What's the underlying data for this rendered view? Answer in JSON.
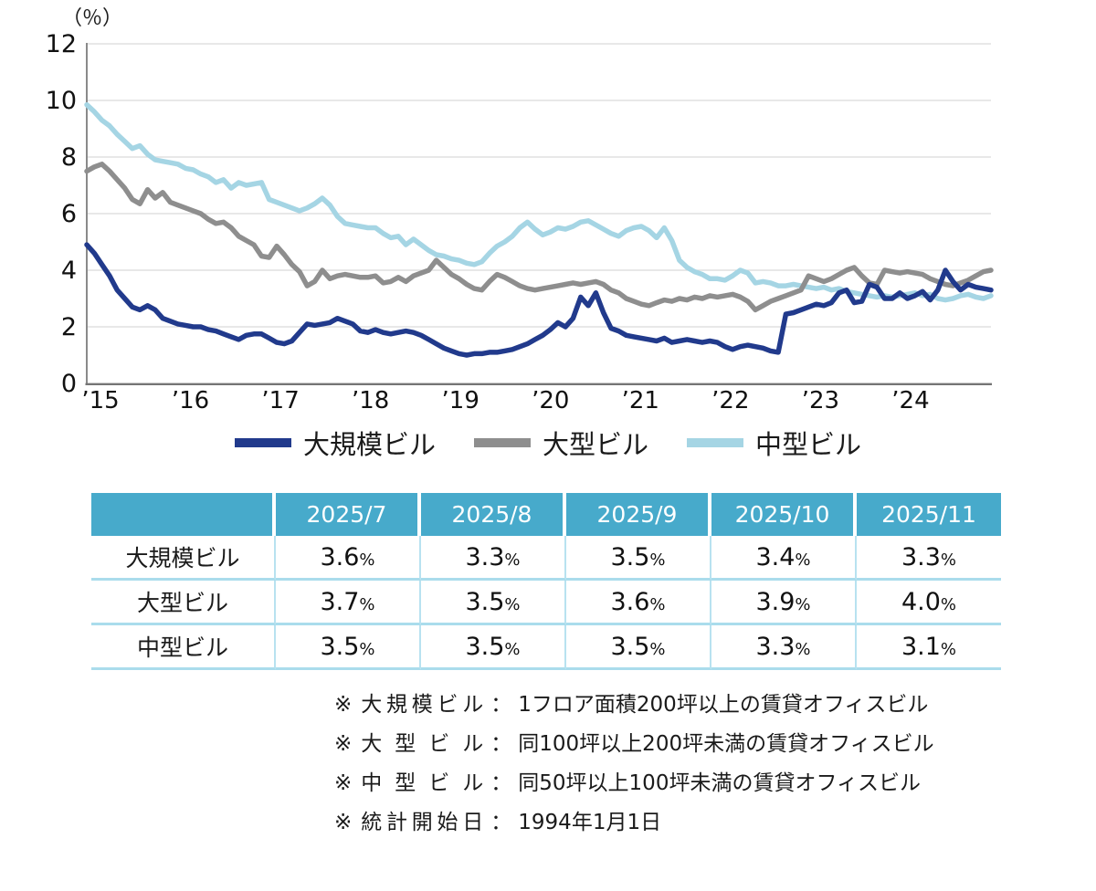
{
  "chart_data": {
    "type": "line",
    "title": "",
    "ylabel": "（％）",
    "ylim": [
      0,
      12
    ],
    "yticks": [
      0,
      2,
      4,
      6,
      8,
      10,
      12
    ],
    "grid": "horizontal",
    "legend_position": "bottom",
    "x_monthly_range": "2015/01 - 2024/12",
    "xtick_labels": [
      "’15",
      "’16",
      "’17",
      "’18",
      "’19",
      "’20",
      "’21",
      "’22",
      "’23",
      "’24"
    ],
    "grid_color": "#d9d9d9",
    "axis_color": "#7a7a7a",
    "series": [
      {
        "name": "大規模ビル",
        "color": "#213a8c",
        "width": 5.5,
        "values": [
          4.9,
          4.6,
          4.2,
          3.8,
          3.3,
          3.0,
          2.7,
          2.6,
          2.75,
          2.6,
          2.3,
          2.2,
          2.1,
          2.05,
          2.0,
          2.0,
          1.9,
          1.85,
          1.75,
          1.65,
          1.55,
          1.7,
          1.75,
          1.75,
          1.6,
          1.45,
          1.4,
          1.5,
          1.8,
          2.1,
          2.05,
          2.1,
          2.15,
          2.3,
          2.2,
          2.1,
          1.85,
          1.8,
          1.9,
          1.8,
          1.75,
          1.8,
          1.85,
          1.8,
          1.7,
          1.55,
          1.4,
          1.25,
          1.15,
          1.05,
          1.0,
          1.05,
          1.05,
          1.1,
          1.1,
          1.15,
          1.2,
          1.3,
          1.4,
          1.55,
          1.7,
          1.9,
          2.15,
          2.0,
          2.3,
          3.05,
          2.75,
          3.2,
          2.5,
          1.95,
          1.85,
          1.7,
          1.65,
          1.6,
          1.55,
          1.5,
          1.6,
          1.45,
          1.5,
          1.55,
          1.5,
          1.45,
          1.5,
          1.45,
          1.3,
          1.2,
          1.3,
          1.35,
          1.3,
          1.25,
          1.15,
          1.1,
          2.45,
          2.5,
          2.6,
          2.7,
          2.8,
          2.75,
          2.85,
          3.2,
          3.3,
          2.85,
          2.9,
          3.5,
          3.4,
          3.0,
          3.0,
          3.2,
          3.0,
          3.1,
          3.25,
          2.95,
          3.3,
          4.0,
          3.6,
          3.3,
          3.5,
          3.4,
          3.35,
          3.3
        ]
      },
      {
        "name": "大型ビル",
        "color": "#8e8e8e",
        "width": 5.5,
        "values": [
          7.5,
          7.65,
          7.75,
          7.5,
          7.2,
          6.9,
          6.5,
          6.35,
          6.85,
          6.55,
          6.75,
          6.4,
          6.3,
          6.2,
          6.1,
          6.0,
          5.8,
          5.65,
          5.7,
          5.5,
          5.2,
          5.05,
          4.9,
          4.5,
          4.45,
          4.85,
          4.55,
          4.2,
          3.95,
          3.45,
          3.6,
          4.0,
          3.7,
          3.8,
          3.85,
          3.8,
          3.75,
          3.75,
          3.8,
          3.55,
          3.6,
          3.75,
          3.6,
          3.8,
          3.9,
          4.0,
          4.35,
          4.1,
          3.85,
          3.7,
          3.5,
          3.35,
          3.3,
          3.6,
          3.85,
          3.75,
          3.6,
          3.45,
          3.35,
          3.3,
          3.35,
          3.4,
          3.45,
          3.5,
          3.55,
          3.5,
          3.55,
          3.6,
          3.5,
          3.3,
          3.2,
          3.0,
          2.9,
          2.8,
          2.75,
          2.85,
          2.95,
          2.9,
          3.0,
          2.95,
          3.05,
          3.0,
          3.1,
          3.05,
          3.1,
          3.15,
          3.05,
          2.9,
          2.6,
          2.75,
          2.9,
          3.0,
          3.1,
          3.2,
          3.3,
          3.8,
          3.7,
          3.6,
          3.7,
          3.85,
          4.0,
          4.1,
          3.8,
          3.55,
          3.5,
          4.0,
          3.95,
          3.9,
          3.95,
          3.9,
          3.85,
          3.7,
          3.6,
          3.5,
          3.45,
          3.55,
          3.65,
          3.8,
          3.95,
          4.0
        ]
      },
      {
        "name": "中型ビル",
        "color": "#a5d5e4",
        "width": 5.5,
        "values": [
          9.85,
          9.6,
          9.3,
          9.1,
          8.8,
          8.55,
          8.3,
          8.4,
          8.1,
          7.9,
          7.85,
          7.8,
          7.75,
          7.6,
          7.55,
          7.4,
          7.3,
          7.1,
          7.2,
          6.9,
          7.1,
          7.0,
          7.05,
          7.1,
          6.5,
          6.4,
          6.3,
          6.2,
          6.1,
          6.2,
          6.35,
          6.55,
          6.3,
          5.9,
          5.65,
          5.6,
          5.55,
          5.5,
          5.5,
          5.3,
          5.15,
          5.2,
          4.9,
          5.1,
          4.9,
          4.7,
          4.55,
          4.5,
          4.4,
          4.35,
          4.25,
          4.2,
          4.3,
          4.6,
          4.85,
          5.0,
          5.2,
          5.5,
          5.7,
          5.45,
          5.25,
          5.35,
          5.5,
          5.45,
          5.55,
          5.7,
          5.75,
          5.6,
          5.45,
          5.3,
          5.2,
          5.4,
          5.5,
          5.55,
          5.4,
          5.15,
          5.5,
          5.05,
          4.35,
          4.1,
          3.95,
          3.85,
          3.7,
          3.7,
          3.65,
          3.8,
          4.0,
          3.9,
          3.55,
          3.6,
          3.55,
          3.45,
          3.45,
          3.5,
          3.45,
          3.4,
          3.35,
          3.4,
          3.3,
          3.35,
          3.25,
          3.2,
          3.15,
          3.1,
          3.05,
          3.1,
          3.05,
          3.1,
          3.15,
          3.2,
          3.1,
          3.15,
          3.0,
          2.95,
          3.0,
          3.1,
          3.15,
          3.05,
          3.0,
          3.1
        ]
      }
    ]
  },
  "legend": {
    "items": [
      {
        "label": "大規模ビル",
        "color": "#213a8c"
      },
      {
        "label": "大型ビル",
        "color": "#8e8e8e"
      },
      {
        "label": "中型ビル",
        "color": "#a5d5e4"
      }
    ]
  },
  "table": {
    "header_bg": "#47aacb",
    "separator_color": "#aadcec",
    "columns": [
      "",
      "2025/7",
      "2025/8",
      "2025/9",
      "2025/10",
      "2025/11"
    ],
    "unit": "%",
    "rows": [
      {
        "label": "大規模ビル",
        "values": [
          "3.6",
          "3.3",
          "3.5",
          "3.4",
          "3.3"
        ]
      },
      {
        "label": "大型ビル",
        "values": [
          "3.7",
          "3.5",
          "3.6",
          "3.9",
          "4.0"
        ]
      },
      {
        "label": "中型ビル",
        "values": [
          "3.5",
          "3.5",
          "3.5",
          "3.3",
          "3.1"
        ]
      }
    ]
  },
  "notes": [
    {
      "marker": "※",
      "label": "大規模ビル",
      "colon": "：",
      "desc": "1フロア面積200坪以上の賃貸オフィスビル"
    },
    {
      "marker": "※",
      "label": "大型ビル",
      "colon": "：",
      "desc": "同100坪以上200坪未満の賃貸オフィスビル"
    },
    {
      "marker": "※",
      "label": "中型ビル",
      "colon": "：",
      "desc": "同50坪以上100坪未満の賃貸オフィスビル"
    },
    {
      "marker": "※",
      "label": "統計開始日",
      "colon": "：",
      "desc": "1994年1月1日"
    }
  ]
}
